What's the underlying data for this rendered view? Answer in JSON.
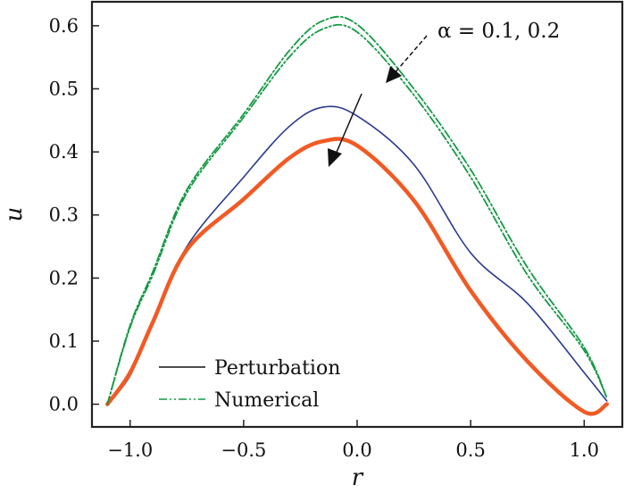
{
  "chart_data": {
    "type": "line",
    "xlabel": "r",
    "ylabel": "u",
    "xlim": [
      -1.168,
      1.168
    ],
    "ylim": [
      -0.036,
      0.638
    ],
    "xticks": [
      -1.0,
      -0.5,
      0.0,
      0.5,
      1.0
    ],
    "xtick_labels": [
      "−1.0",
      "−0.5",
      "0.0",
      "0.5",
      "1.0"
    ],
    "yticks": [
      0.0,
      0.1,
      0.2,
      0.3,
      0.4,
      0.5,
      0.6
    ],
    "ytick_labels": [
      "0.0",
      "0.1",
      "0.2",
      "0.3",
      "0.4",
      "0.5",
      "0.6"
    ],
    "grid": false,
    "legend_position": "bottom-left",
    "legend": [
      {
        "label": "Perturbation",
        "style": "solid",
        "color": "#111111"
      },
      {
        "label": "Numerical",
        "style": "dash-dot-dot",
        "color": "#139a43"
      }
    ],
    "annotation": "α = 0.1, 0.2",
    "x": [
      -1.1,
      -1.0,
      -0.9,
      -0.75,
      -0.5,
      -0.3,
      -0.15,
      0.0,
      0.25,
      0.5,
      0.75,
      1.0,
      1.1
    ],
    "series": [
      {
        "style": "solid",
        "color": "#2b3990",
        "width": "thin",
        "values": [
          0,
          0.045,
          0.13,
          0.25,
          0.36,
          0.44,
          0.471,
          0.457,
          0.38,
          0.24,
          0.16,
          0.05,
          0.005
        ]
      },
      {
        "style": "solid",
        "color": "#f15a24",
        "width": "thick",
        "values": [
          0,
          0.05,
          0.13,
          0.245,
          0.325,
          0.39,
          0.417,
          0.41,
          0.323,
          0.18,
          0.068,
          -0.012,
          0
        ]
      },
      {
        "style": "dash-dot",
        "color": "#139a43",
        "values": [
          0,
          0.125,
          0.21,
          0.34,
          0.46,
          0.56,
          0.608,
          0.602,
          0.5,
          0.372,
          0.217,
          0.09,
          0.01
        ]
      },
      {
        "style": "dash-dot-dot",
        "color": "#139a43",
        "values": [
          0,
          0.122,
          0.205,
          0.335,
          0.455,
          0.55,
          0.595,
          0.59,
          0.49,
          0.36,
          0.205,
          0.085,
          0.01
        ]
      }
    ]
  }
}
